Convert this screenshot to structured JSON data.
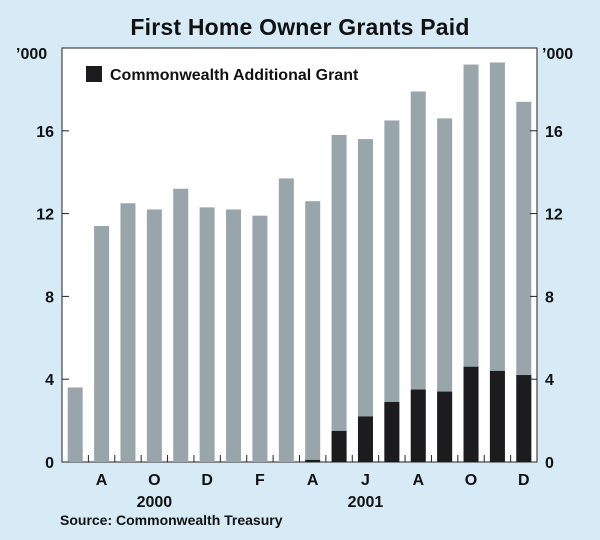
{
  "chart_data": {
    "type": "bar",
    "title": "First Home Owner Grants Paid",
    "y_unit_label": "’000",
    "ylim": [
      0,
      20
    ],
    "yticks": [
      0,
      4,
      8,
      12,
      16
    ],
    "months": [
      "Jul-2000",
      "Aug-2000",
      "Sep-2000",
      "Oct-2000",
      "Nov-2000",
      "Dec-2000",
      "Jan-2001",
      "Feb-2001",
      "Mar-2001",
      "Apr-2001",
      "May-2001",
      "Jun-2001",
      "Jul-2001",
      "Aug-2001",
      "Sep-2001",
      "Oct-2001",
      "Nov-2001",
      "Dec-2001"
    ],
    "x_tick_labels": [
      "",
      "A",
      "",
      "O",
      "",
      "D",
      "",
      "F",
      "",
      "A",
      "",
      "J",
      "",
      "A",
      "",
      "O",
      "",
      "D"
    ],
    "year_labels": [
      {
        "text": "2000",
        "month_index": 3
      },
      {
        "text": "2001",
        "month_index": 11
      }
    ],
    "series": [
      {
        "name": "",
        "color": "#98a6ac",
        "values": [
          3.6,
          11.4,
          12.5,
          12.2,
          13.2,
          12.3,
          12.2,
          11.9,
          13.7,
          12.6,
          15.8,
          15.6,
          16.5,
          17.9,
          16.6,
          19.2,
          19.3,
          17.4
        ]
      },
      {
        "name": "Commonwealth Additional Grant",
        "color": "#1c1c1e",
        "values": [
          0,
          0,
          0,
          0,
          0,
          0,
          0,
          0,
          0,
          0.1,
          1.5,
          2.2,
          2.9,
          3.5,
          3.4,
          4.6,
          4.4,
          4.2
        ]
      }
    ],
    "legend": {
      "position": "top-left",
      "entries": [
        "Commonwealth Additional Grant"
      ]
    },
    "grid": false
  },
  "source": "Source: Commonwealth Treasury"
}
